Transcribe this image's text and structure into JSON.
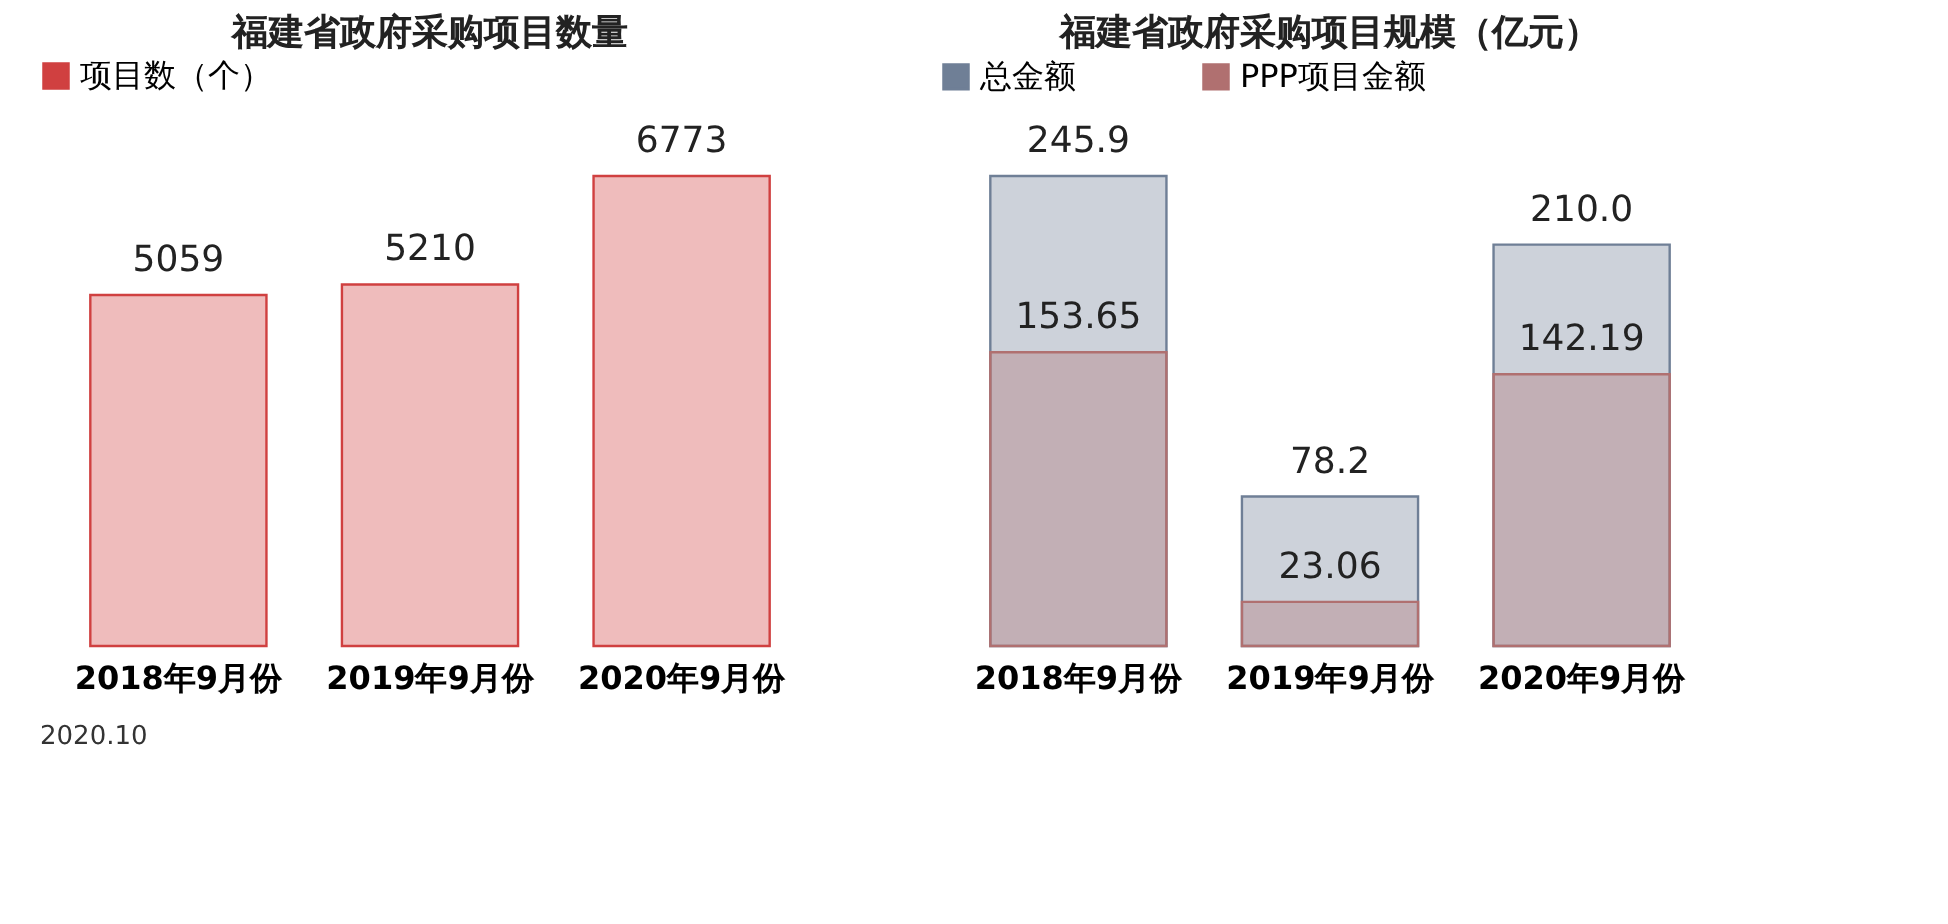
{
  "chart_data": [
    {
      "type": "bar",
      "title": "福建省政府采购项目数量",
      "categories": [
        "2018年9月份",
        "2019年9月份",
        "2020年9月份"
      ],
      "series": [
        {
          "name": "项目数（个）",
          "color": "#d04040",
          "values": [
            5059,
            5210,
            6773
          ]
        }
      ],
      "data_labels": true,
      "legend": "top",
      "tick_labels": "x"
    },
    {
      "type": "bar",
      "title": "福建省政府采购项目规模（亿元）",
      "categories": [
        "2018年9月份",
        "2019年9月份",
        "2020年9月份"
      ],
      "series": [
        {
          "name": "总金额",
          "color": "#6f7f96",
          "values": [
            245.9,
            78.2,
            210.0
          ],
          "value_labels": [
            "245.9",
            "78.2",
            "210.0"
          ]
        },
        {
          "name": "PPP项目金额",
          "color": "#b07070",
          "values": [
            153.65,
            23.06,
            142.19
          ],
          "value_labels": [
            "153.65",
            "23.06",
            "142.19"
          ]
        }
      ],
      "stacked": false,
      "legend": "top",
      "tick_labels": "x",
      "annotations": [
        "2020.10"
      ]
    }
  ]
}
